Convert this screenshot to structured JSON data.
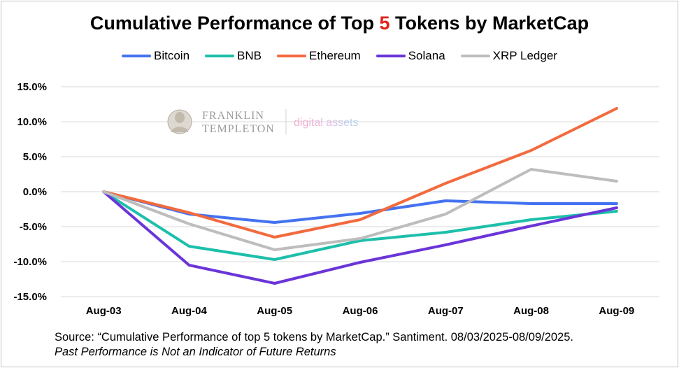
{
  "title": {
    "before": "Cumulative Performance of Top ",
    "highlight": "5",
    "after": " Tokens by MarketCap"
  },
  "colors": {
    "highlight": "#e3221b",
    "grid": "#d9d9d9"
  },
  "watermark": {
    "line1": "FRANKLIN",
    "line2": "TEMPLETON",
    "suffix": "digital assets",
    "icon": "ben-franklin-portrait-icon"
  },
  "source": {
    "text": "Source: “Cumulative Performance of top 5 tokens by MarketCap.” Santiment. 08/03/2025-08/09/2025.",
    "disclaimer": "Past Performance is Not an Indicator of Future Returns"
  },
  "chart_data": {
    "type": "line",
    "title": "Cumulative Performance of Top 5 Tokens by MarketCap",
    "xlabel": "",
    "ylabel": "",
    "categories": [
      "Aug-03",
      "Aug-04",
      "Aug-05",
      "Aug-06",
      "Aug-07",
      "Aug-08",
      "Aug-09"
    ],
    "ylim": [
      -15,
      15
    ],
    "yticks": [
      15,
      10,
      5,
      0,
      -5,
      -10,
      -15
    ],
    "ytick_labels": [
      "15.0%",
      "10.0%",
      "5.0%",
      "0.0%",
      "-5.0%",
      "-10.0%",
      "-15.0%"
    ],
    "grid": true,
    "legend_position": "top-center",
    "series": [
      {
        "name": "Bitcoin",
        "color": "#4472f0",
        "values": [
          0,
          -3.2,
          -4.4,
          -3.1,
          -1.3,
          -1.7,
          -1.7
        ]
      },
      {
        "name": "BNB",
        "color": "#1dbfaa",
        "values": [
          0,
          -7.8,
          -9.7,
          -7.0,
          -5.8,
          -4.0,
          -2.8
        ]
      },
      {
        "name": "Ethereum",
        "color": "#f26a3d",
        "values": [
          0,
          -3.0,
          -6.5,
          -4.0,
          1.2,
          5.9,
          11.9
        ]
      },
      {
        "name": "Solana",
        "color": "#6a35d8",
        "values": [
          0,
          -10.5,
          -13.1,
          -10.1,
          -7.6,
          -4.9,
          -2.3
        ]
      },
      {
        "name": "XRP Ledger",
        "color": "#bdbdbd",
        "values": [
          0,
          -4.6,
          -8.3,
          -6.7,
          -3.2,
          3.2,
          1.5
        ]
      }
    ]
  }
}
